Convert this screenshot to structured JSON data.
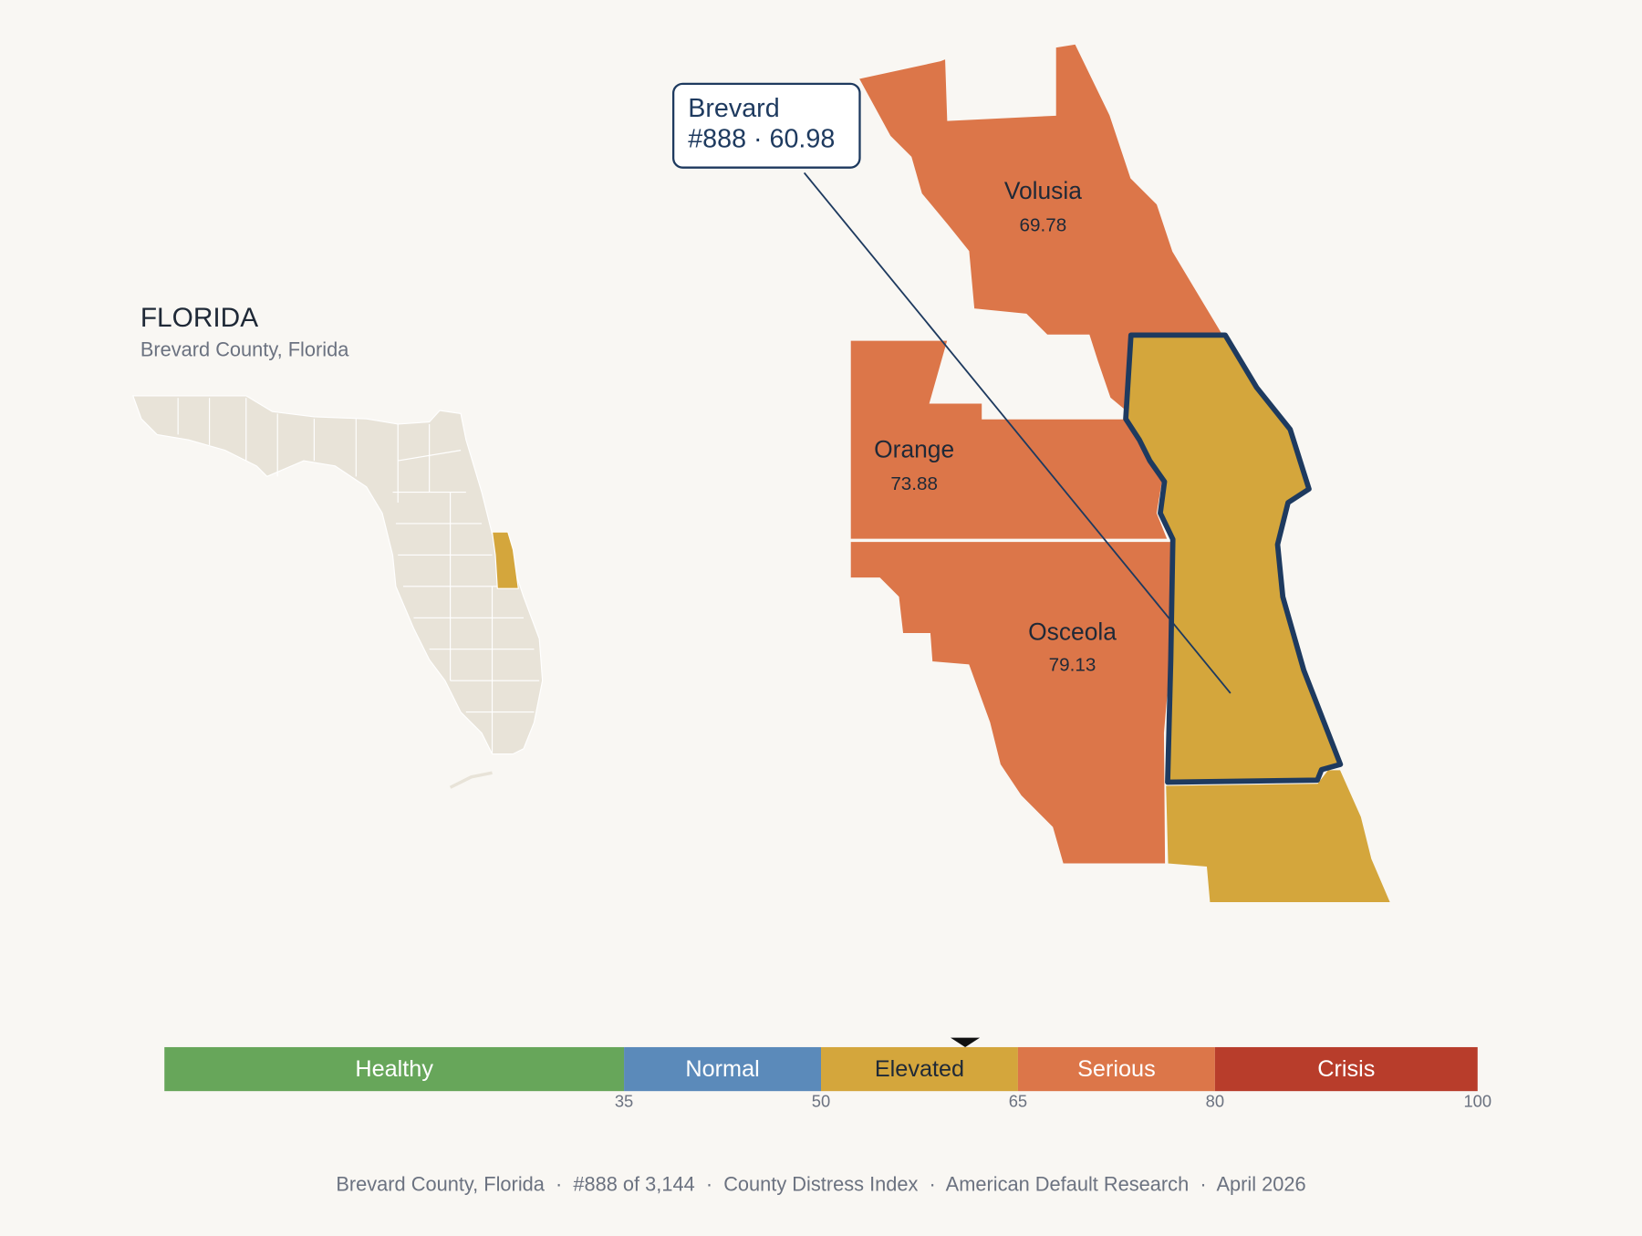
{
  "title": "FLORIDA",
  "subtitle": "Brevard County, Florida",
  "callout": {
    "name": "Brevard",
    "detail": "#888 · 60.98"
  },
  "counties": [
    {
      "name": "Volusia",
      "value": 69.78
    },
    {
      "name": "Orange",
      "value": 73.88
    },
    {
      "name": "Osceola",
      "value": 79.13
    }
  ],
  "scale": {
    "lim": [
      0,
      100
    ],
    "ticks": [
      35,
      50,
      65,
      80,
      100
    ],
    "bands": [
      {
        "label": "Healthy",
        "color": "#67a65a",
        "text_color": "#ffffff"
      },
      {
        "label": "Normal",
        "color": "#5b8aba",
        "text_color": "#ffffff"
      },
      {
        "label": "Elevated",
        "color": "#d4a63c",
        "text_color": "#1f2937"
      },
      {
        "label": "Serious",
        "color": "#dc7649",
        "text_color": "#ffffff"
      },
      {
        "label": "Crisis",
        "color": "#b83d2b",
        "text_color": "#ffffff"
      }
    ],
    "marker": 60.98
  },
  "footer": "Brevard County, Florida  ·  #888 of 3,144  ·  County Distress Index  ·  American Default Research  ·  April 2026"
}
